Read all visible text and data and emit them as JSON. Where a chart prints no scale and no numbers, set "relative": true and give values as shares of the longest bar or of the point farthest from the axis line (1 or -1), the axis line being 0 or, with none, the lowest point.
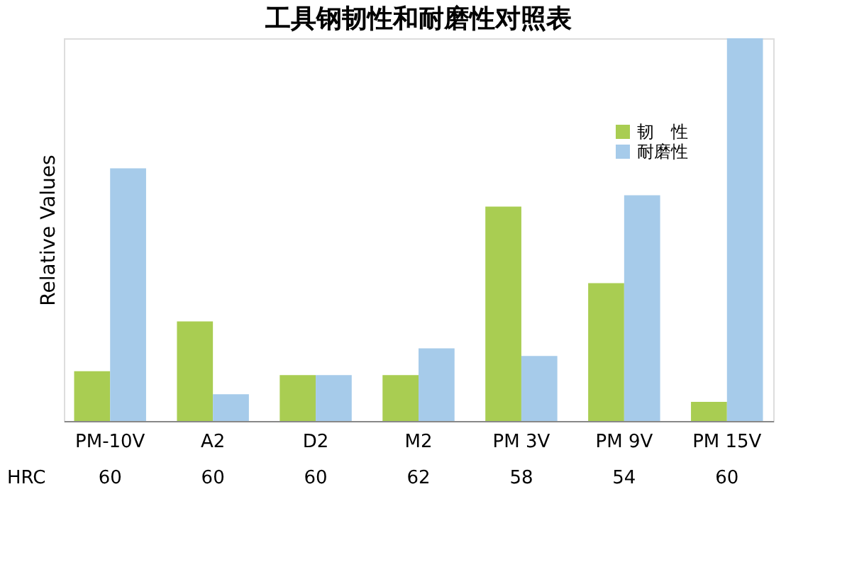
{
  "chart_data": {
    "type": "bar",
    "title": "工具钢韧性和耐磨性对照表",
    "ylabel": "Relative Values",
    "relative": true,
    "categories": [
      "PM-10V",
      "A2",
      "D2",
      "M2",
      "PM 3V",
      "PM 9V",
      "PM 15V"
    ],
    "series": [
      {
        "name": "韧　性",
        "color": "#a9cd52",
        "values": [
          0.13,
          0.26,
          0.12,
          0.12,
          0.56,
          0.36,
          0.05
        ]
      },
      {
        "name": "耐磨性",
        "color": "#a6cbea",
        "values": [
          0.66,
          0.07,
          0.12,
          0.19,
          0.17,
          0.59,
          1
        ]
      }
    ],
    "legend": "top right",
    "grid": false,
    "annotations": [
      "HRC",
      "60",
      "60",
      "60",
      "62",
      "58",
      "54",
      "60"
    ]
  }
}
